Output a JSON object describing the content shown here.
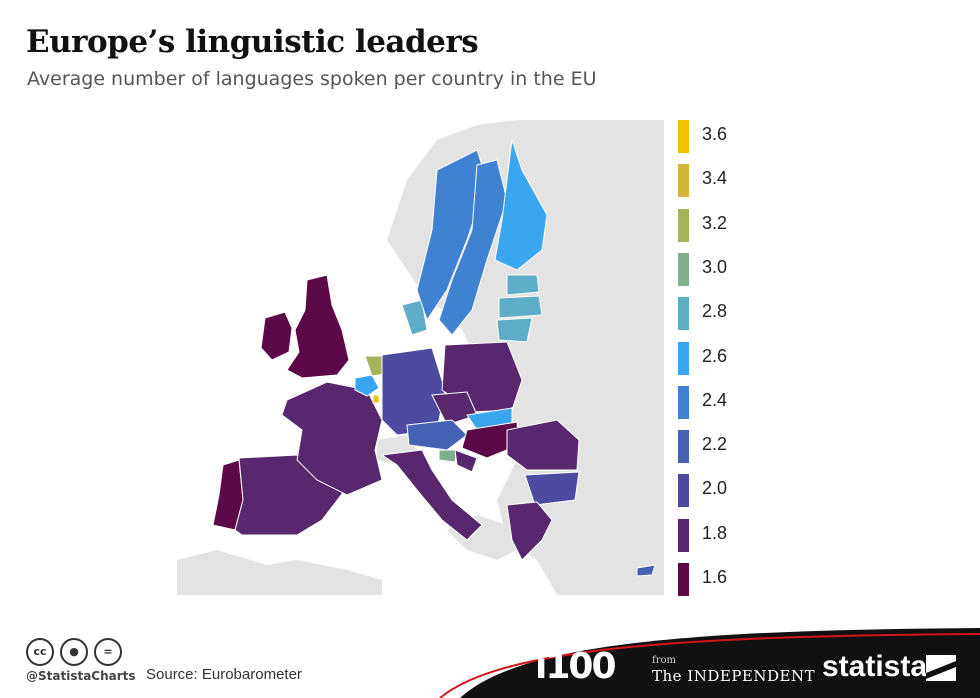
{
  "title": "Europe’s linguistic leaders",
  "subtitle": "Average number of languages spoken per country in the EU",
  "legend": [
    {
      "value": 3.6,
      "label": "3.6",
      "color": "#f2c200"
    },
    {
      "value": 3.4,
      "label": "3.4",
      "color": "#d2b53a"
    },
    {
      "value": 3.2,
      "label": "3.2",
      "color": "#a4b35c"
    },
    {
      "value": 3.0,
      "label": "3.0",
      "color": "#7fb08c"
    },
    {
      "value": 2.8,
      "label": "2.8",
      "color": "#5eadc7"
    },
    {
      "value": 2.6,
      "label": "2.6",
      "color": "#3aa6ef"
    },
    {
      "value": 2.4,
      "label": "2.4",
      "color": "#3f82d2"
    },
    {
      "value": 2.2,
      "label": "2.2",
      "color": "#4362b4"
    },
    {
      "value": 2.0,
      "label": "2.0",
      "color": "#4d4aa0"
    },
    {
      "value": 1.8,
      "label": "1.8",
      "color": "#58276d"
    },
    {
      "value": 1.6,
      "label": "1.6",
      "color": "#5c0848"
    }
  ],
  "map": {
    "non_eu_color": "#e3e3e3",
    "sea_color": "#ffffff",
    "regions": [
      {
        "id": "ireland",
        "value": 1.6
      },
      {
        "id": "united-kingdom",
        "value": 1.6
      },
      {
        "id": "portugal",
        "value": 1.6
      },
      {
        "id": "spain",
        "value": 1.8
      },
      {
        "id": "france",
        "value": 1.8
      },
      {
        "id": "belgium",
        "value": 2.6
      },
      {
        "id": "netherlands",
        "value": 3.2
      },
      {
        "id": "luxembourg",
        "value": 3.6
      },
      {
        "id": "germany",
        "value": 2.0
      },
      {
        "id": "denmark",
        "value": 2.8
      },
      {
        "id": "norway",
        "value": 2.4
      },
      {
        "id": "sweden",
        "value": 2.4
      },
      {
        "id": "finland",
        "value": 2.6
      },
      {
        "id": "estonia",
        "value": 2.8
      },
      {
        "id": "latvia",
        "value": 2.8
      },
      {
        "id": "lithuania",
        "value": 2.8
      },
      {
        "id": "poland",
        "value": 1.8
      },
      {
        "id": "czechia",
        "value": 1.8
      },
      {
        "id": "slovakia",
        "value": 2.6
      },
      {
        "id": "austria",
        "value": 2.2
      },
      {
        "id": "hungary",
        "value": 1.6
      },
      {
        "id": "slovenia",
        "value": 3.0
      },
      {
        "id": "italy",
        "value": 1.8
      },
      {
        "id": "romania",
        "value": 1.8
      },
      {
        "id": "bulgaria",
        "value": 2.0
      },
      {
        "id": "greece",
        "value": 1.8
      },
      {
        "id": "cyprus",
        "value": 2.2
      },
      {
        "id": "croatia",
        "value": 1.8
      }
    ]
  },
  "footer": {
    "handle": "@StatistaCharts",
    "source": "Source: Eurobarometer",
    "cc_icons": [
      "cc",
      "by",
      "nd"
    ],
    "logo_i100": "i100",
    "from": "from",
    "independent": "The INDEPENDENT",
    "statista": "statista"
  }
}
